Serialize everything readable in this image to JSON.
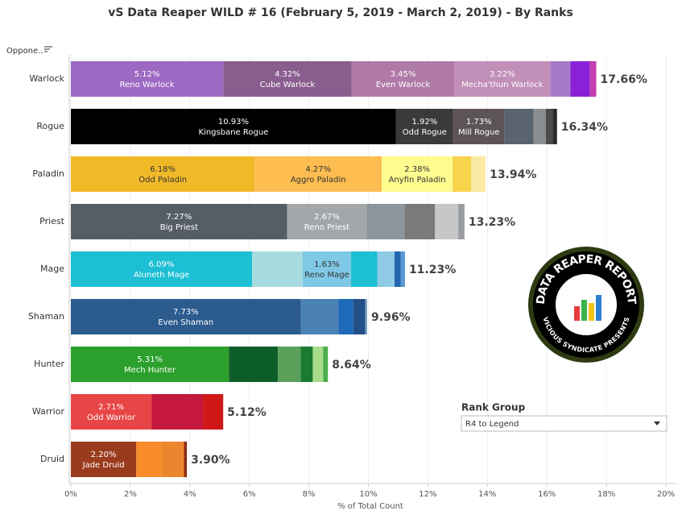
{
  "chart_data": {
    "type": "stacked_bar",
    "title": "vS Data Reaper WILD # 16 (February 5, 2019 - March 2, 2019) - By Ranks",
    "row_header": "Oppone..",
    "x_label": "% of Total Count",
    "xlim": [
      0,
      20
    ],
    "xticks": [
      {
        "value": 0,
        "label": "0%"
      },
      {
        "value": 2,
        "label": "2%"
      },
      {
        "value": 4,
        "label": "4%"
      },
      {
        "value": 6,
        "label": "6%"
      },
      {
        "value": 8,
        "label": "8%"
      },
      {
        "value": 10,
        "label": "10%"
      },
      {
        "value": 12,
        "label": "12%"
      },
      {
        "value": 14,
        "label": "14%"
      },
      {
        "value": 16,
        "label": "16%"
      },
      {
        "value": 18,
        "label": "18%"
      },
      {
        "value": 20,
        "label": "20%"
      }
    ],
    "grid": true,
    "categories": [
      "Warlock",
      "Rogue",
      "Paladin",
      "Priest",
      "Mage",
      "Shaman",
      "Hunter",
      "Warrior",
      "Druid"
    ],
    "rows": [
      {
        "total": 17.66,
        "total_label": "17.66%",
        "segments": [
          {
            "name": "Reno Warlock",
            "value": 5.12,
            "value_label": "5.12%",
            "color": "#9d69c3"
          },
          {
            "name": "Cube Warlock",
            "value": 4.32,
            "value_label": "4.32%",
            "color": "#8a5d8f"
          },
          {
            "name": "Even Warlock",
            "value": 3.45,
            "value_label": "3.45%",
            "color": "#b07aa8"
          },
          {
            "name": "Mecha'thun Warlock",
            "value": 3.22,
            "value_label": "3.22%",
            "color": "#c18fb8"
          },
          {
            "value": 0.68,
            "color": "#a57bc9"
          },
          {
            "value": 0.65,
            "color": "#8a20d8"
          },
          {
            "value": 0.22,
            "color": "#c23fb0"
          }
        ]
      },
      {
        "total": 16.34,
        "total_label": "16.34%",
        "segments": [
          {
            "name": "Kingsbane Rogue",
            "value": 10.93,
            "value_label": "10.93%",
            "color": "#000000"
          },
          {
            "name": "Odd Rogue",
            "value": 1.92,
            "value_label": "1.92%",
            "color": "#3a3a3a"
          },
          {
            "name": "Mill Rogue",
            "value": 1.73,
            "value_label": "1.73%",
            "color": "#5d5555"
          },
          {
            "value": 0.97,
            "color": "#5a6470"
          },
          {
            "value": 0.41,
            "color": "#8a8e92"
          },
          {
            "value": 0.24,
            "color": "#4b4b4b"
          },
          {
            "value": 0.14,
            "color": "#2a2a2a"
          }
        ]
      },
      {
        "total": 13.94,
        "total_label": "13.94%",
        "segments": [
          {
            "name": "Odd Paladin",
            "value": 6.18,
            "value_label": "6.18%",
            "color": "#f0b928"
          },
          {
            "name": "Aggro Paladin",
            "value": 4.27,
            "value_label": "4.27%",
            "color": "#fdbd50"
          },
          {
            "name": "Anyfin Paladin",
            "value": 2.38,
            "value_label": "2.38%",
            "color": "#fefc8f"
          },
          {
            "value": 0.63,
            "color": "#f8d44c"
          },
          {
            "value": 0.48,
            "color": "#fbeaa6"
          }
        ]
      },
      {
        "total": 13.23,
        "total_label": "13.23%",
        "segments": [
          {
            "name": "Big Priest",
            "value": 7.27,
            "value_label": "7.27%",
            "color": "#555d66"
          },
          {
            "name": "Reno Priest",
            "value": 2.67,
            "value_label": "2.67%",
            "color": "#a3a7aa"
          },
          {
            "value": 1.27,
            "color": "#8b969c"
          },
          {
            "value": 1.03,
            "color": "#7a7a7a"
          },
          {
            "value": 0.78,
            "color": "#c7c7c7"
          },
          {
            "value": 0.21,
            "color": "#9a9da0"
          }
        ]
      },
      {
        "total": 11.23,
        "total_label": "11.23%",
        "segments": [
          {
            "name": "Aluneth Mage",
            "value": 6.09,
            "value_label": "6.09%",
            "color": "#1cbfd4"
          },
          {
            "value": 1.7,
            "color": "#a7dbe0"
          },
          {
            "name": "Reno Mage",
            "value": 1.63,
            "value_label": "1.63%",
            "color": "#7fc8e6"
          },
          {
            "value": 0.88,
            "color": "#1cbfd4"
          },
          {
            "value": 0.58,
            "color": "#8fcbe4"
          },
          {
            "value": 0.21,
            "color": "#2266b0"
          },
          {
            "value": 0.14,
            "color": "#5a9ad4"
          }
        ]
      },
      {
        "total": 9.96,
        "total_label": "9.96%",
        "segments": [
          {
            "name": "Even Shaman",
            "value": 7.73,
            "value_label": "7.73%",
            "color": "#2c5b8e"
          },
          {
            "value": 1.27,
            "color": "#4b82b5"
          },
          {
            "value": 0.49,
            "color": "#1f6ab8"
          },
          {
            "value": 0.41,
            "color": "#24508a"
          },
          {
            "value": 0.06,
            "color": "#7ea6c9"
          }
        ]
      },
      {
        "total": 8.64,
        "total_label": "8.64%",
        "segments": [
          {
            "name": "Mech Hunter",
            "value": 5.31,
            "value_label": "5.31%",
            "color": "#2ca02c"
          },
          {
            "value": 1.65,
            "color": "#0e5e2a"
          },
          {
            "value": 0.76,
            "color": "#5aa05a"
          },
          {
            "value": 0.41,
            "color": "#1a7a30"
          },
          {
            "value": 0.35,
            "color": "#a6dc8a"
          },
          {
            "value": 0.16,
            "color": "#4cae4c"
          }
        ]
      },
      {
        "total": 5.12,
        "total_label": "5.12%",
        "segments": [
          {
            "name": "Odd Warrior",
            "value": 2.71,
            "value_label": "2.71%",
            "color": "#e84646"
          },
          {
            "value": 1.73,
            "color": "#c4183c"
          },
          {
            "value": 0.68,
            "color": "#d01818"
          }
        ]
      },
      {
        "total": 3.9,
        "total_label": "3.90%",
        "segments": [
          {
            "name": "Jade Druid",
            "value": 2.2,
            "value_label": "2.20%",
            "color": "#9b3b1d"
          },
          {
            "value": 0.87,
            "color": "#f88c2a"
          },
          {
            "value": 0.73,
            "color": "#ec862e"
          },
          {
            "value": 0.1,
            "color": "#8b2a10"
          }
        ]
      }
    ]
  },
  "filter": {
    "label": "Rank Group",
    "value": "R4 to Legend"
  },
  "logo": {
    "top": "DATA REAPER REPORT",
    "bottom": "VICIOUS SYNDICATE PRESENTS"
  }
}
